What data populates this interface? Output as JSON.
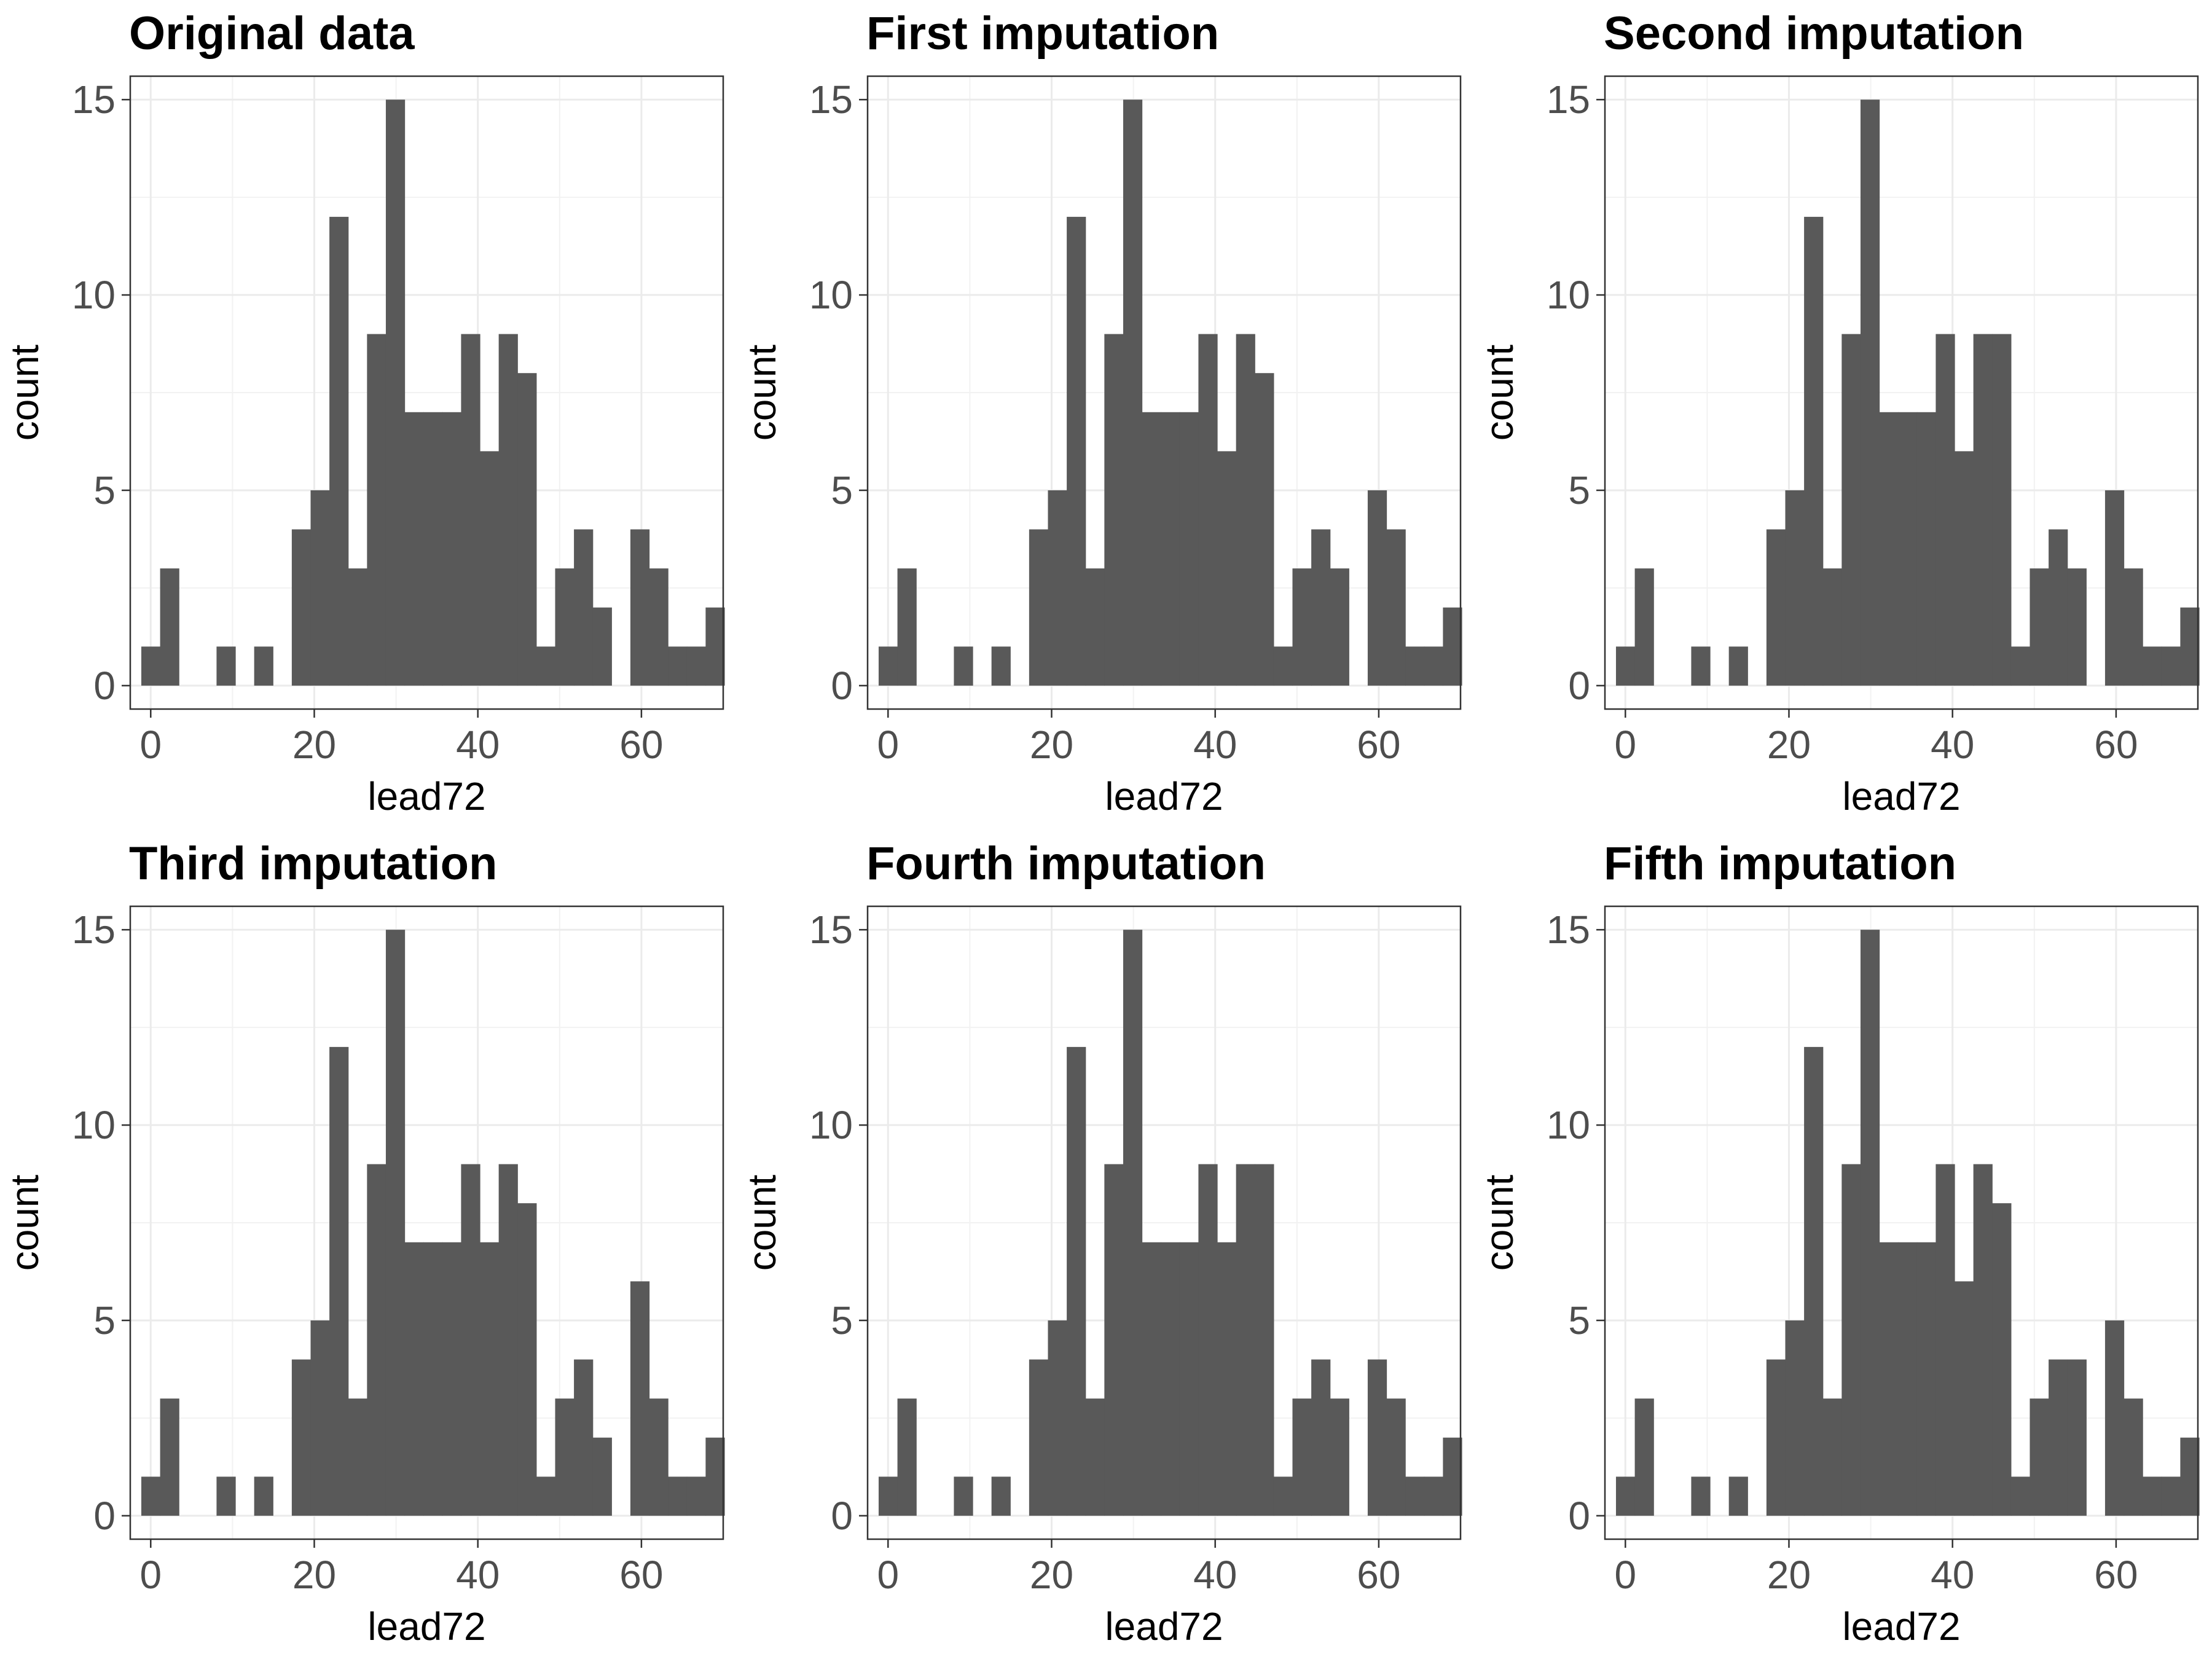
{
  "chart_data": [
    {
      "type": "bar",
      "title": "Original data",
      "xlabel": "lead72",
      "ylabel": "count",
      "xlim": [
        -2.5,
        70
      ],
      "ylim": [
        -0.6,
        15.6
      ],
      "x_ticks": [
        0,
        20,
        40,
        60
      ],
      "y_ticks": [
        0,
        5,
        10,
        15
      ],
      "bin_width": 2.3,
      "bin_start": -1.15,
      "values": [
        1,
        3,
        0,
        0,
        1,
        0,
        1,
        0,
        4,
        5,
        12,
        3,
        9,
        15,
        7,
        7,
        7,
        9,
        6,
        9,
        8,
        1,
        3,
        4,
        2,
        0,
        4,
        3,
        1,
        1,
        2
      ],
      "grid": true,
      "color": "#595959"
    },
    {
      "type": "bar",
      "title": "First imputation",
      "xlabel": "lead72",
      "ylabel": "count",
      "xlim": [
        -2.5,
        70
      ],
      "ylim": [
        -0.6,
        15.6
      ],
      "x_ticks": [
        0,
        20,
        40,
        60
      ],
      "y_ticks": [
        0,
        5,
        10,
        15
      ],
      "bin_width": 2.3,
      "bin_start": -1.15,
      "values": [
        1,
        3,
        0,
        0,
        1,
        0,
        1,
        0,
        4,
        5,
        12,
        3,
        9,
        15,
        7,
        7,
        7,
        9,
        6,
        9,
        8,
        1,
        3,
        4,
        3,
        0,
        5,
        4,
        1,
        1,
        2
      ],
      "grid": true,
      "color": "#595959"
    },
    {
      "type": "bar",
      "title": "Second imputation",
      "xlabel": "lead72",
      "ylabel": "count",
      "xlim": [
        -2.5,
        70
      ],
      "ylim": [
        -0.6,
        15.6
      ],
      "x_ticks": [
        0,
        20,
        40,
        60
      ],
      "y_ticks": [
        0,
        5,
        10,
        15
      ],
      "bin_width": 2.3,
      "bin_start": -1.15,
      "values": [
        1,
        3,
        0,
        0,
        1,
        0,
        1,
        0,
        4,
        5,
        12,
        3,
        9,
        15,
        7,
        7,
        7,
        9,
        6,
        9,
        9,
        1,
        3,
        4,
        3,
        0,
        5,
        3,
        1,
        1,
        2
      ],
      "grid": true,
      "color": "#595959"
    },
    {
      "type": "bar",
      "title": "Third imputation",
      "xlabel": "lead72",
      "ylabel": "count",
      "xlim": [
        -2.5,
        70
      ],
      "ylim": [
        -0.6,
        15.6
      ],
      "x_ticks": [
        0,
        20,
        40,
        60
      ],
      "y_ticks": [
        0,
        5,
        10,
        15
      ],
      "bin_width": 2.3,
      "bin_start": -1.15,
      "values": [
        1,
        3,
        0,
        0,
        1,
        0,
        1,
        0,
        4,
        5,
        12,
        3,
        9,
        15,
        7,
        7,
        7,
        9,
        7,
        9,
        8,
        1,
        3,
        4,
        2,
        0,
        6,
        3,
        1,
        1,
        2
      ],
      "grid": true,
      "color": "#595959"
    },
    {
      "type": "bar",
      "title": "Fourth imputation",
      "xlabel": "lead72",
      "ylabel": "count",
      "xlim": [
        -2.5,
        70
      ],
      "ylim": [
        -0.6,
        15.6
      ],
      "x_ticks": [
        0,
        20,
        40,
        60
      ],
      "y_ticks": [
        0,
        5,
        10,
        15
      ],
      "bin_width": 2.3,
      "bin_start": -1.15,
      "values": [
        1,
        3,
        0,
        0,
        1,
        0,
        1,
        0,
        4,
        5,
        12,
        3,
        9,
        15,
        7,
        7,
        7,
        9,
        7,
        9,
        9,
        1,
        3,
        4,
        3,
        0,
        4,
        3,
        1,
        1,
        2
      ],
      "grid": true,
      "color": "#595959"
    },
    {
      "type": "bar",
      "title": "Fifth imputation",
      "xlabel": "lead72",
      "ylabel": "count",
      "xlim": [
        -2.5,
        70
      ],
      "ylim": [
        -0.6,
        15.6
      ],
      "x_ticks": [
        0,
        20,
        40,
        60
      ],
      "y_ticks": [
        0,
        5,
        10,
        15
      ],
      "bin_width": 2.3,
      "bin_start": -1.15,
      "values": [
        1,
        3,
        0,
        0,
        1,
        0,
        1,
        0,
        4,
        5,
        12,
        3,
        9,
        15,
        7,
        7,
        7,
        9,
        6,
        9,
        8,
        1,
        3,
        4,
        4,
        0,
        5,
        3,
        1,
        1,
        2
      ],
      "grid": true,
      "color": "#595959"
    }
  ]
}
